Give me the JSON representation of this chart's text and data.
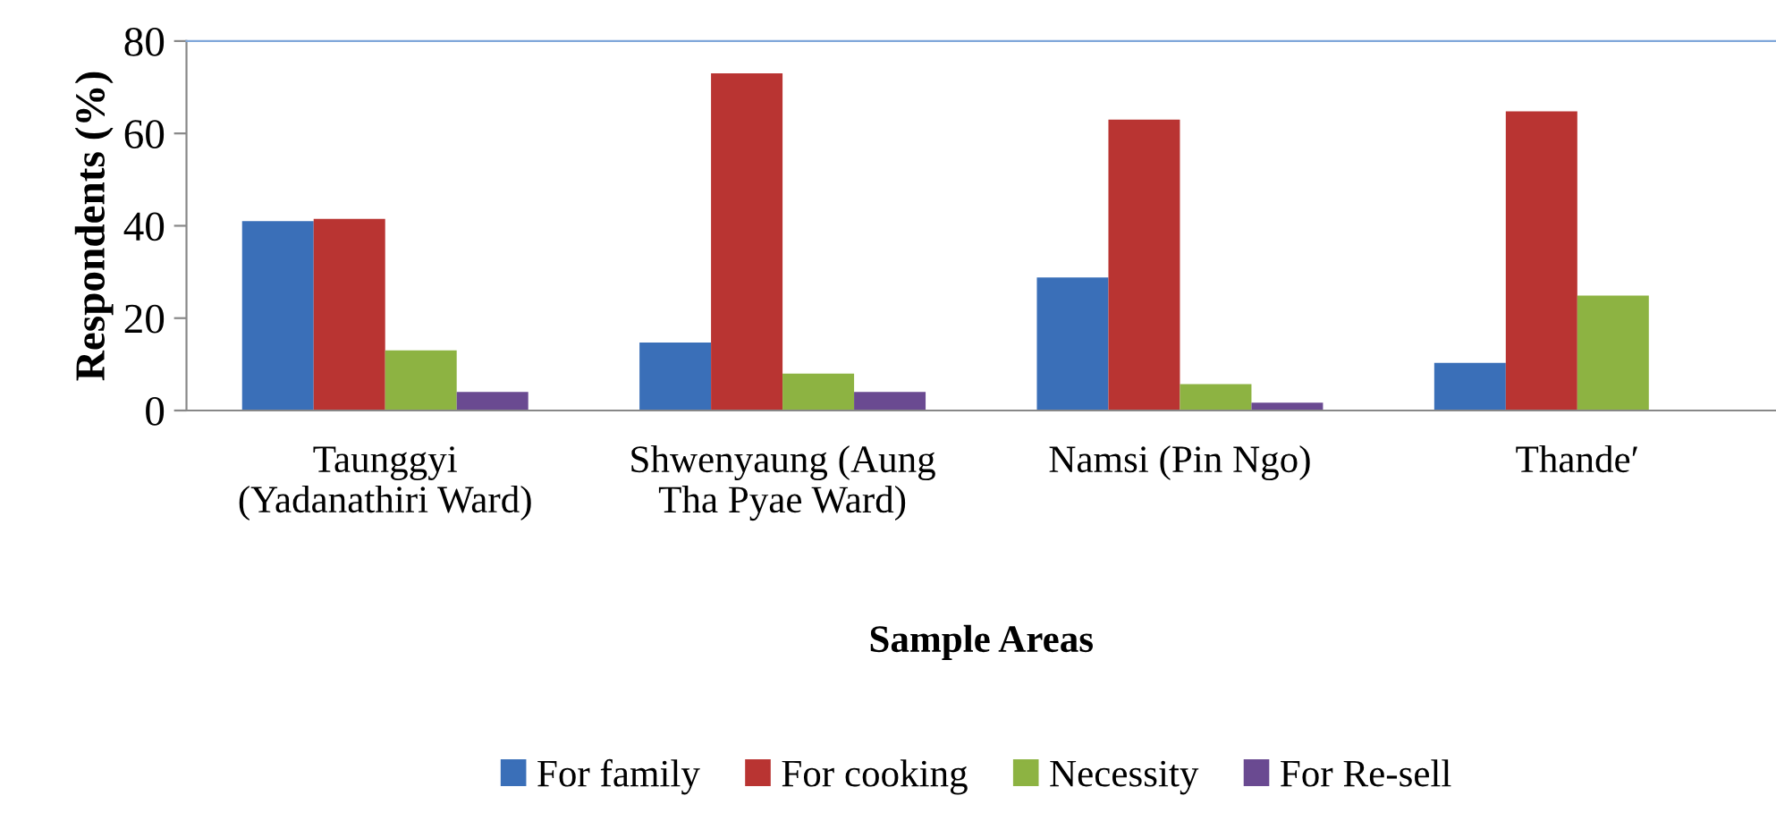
{
  "chart_data": {
    "type": "bar",
    "xlabel": "Sample Areas",
    "ylabel": "Respondents (%)",
    "categories": [
      "Taunggyi\n(Yadanathiri Ward)",
      "Shwenyaung (Aung\nTha Pyae Ward)",
      "Namsi (Pin Ngo)",
      "Thande′"
    ],
    "series": [
      {
        "name": "For family",
        "color": "#3a6fb8",
        "values": [
          41,
          14.7,
          28.8,
          10.3
        ]
      },
      {
        "name": "For cooking",
        "color": "#b93432",
        "values": [
          41.5,
          73,
          63,
          64.8
        ]
      },
      {
        "name": "Necessity",
        "color": "#8db342",
        "values": [
          13,
          8,
          5.7,
          24.9
        ]
      },
      {
        "name": "For Re-sell",
        "color": "#6a4a91",
        "values": [
          4,
          4,
          1.7,
          0
        ]
      }
    ],
    "ylim": [
      0,
      80
    ],
    "yticks": [
      0,
      20,
      40,
      60,
      80
    ],
    "grid": false,
    "legend": "bottom"
  }
}
